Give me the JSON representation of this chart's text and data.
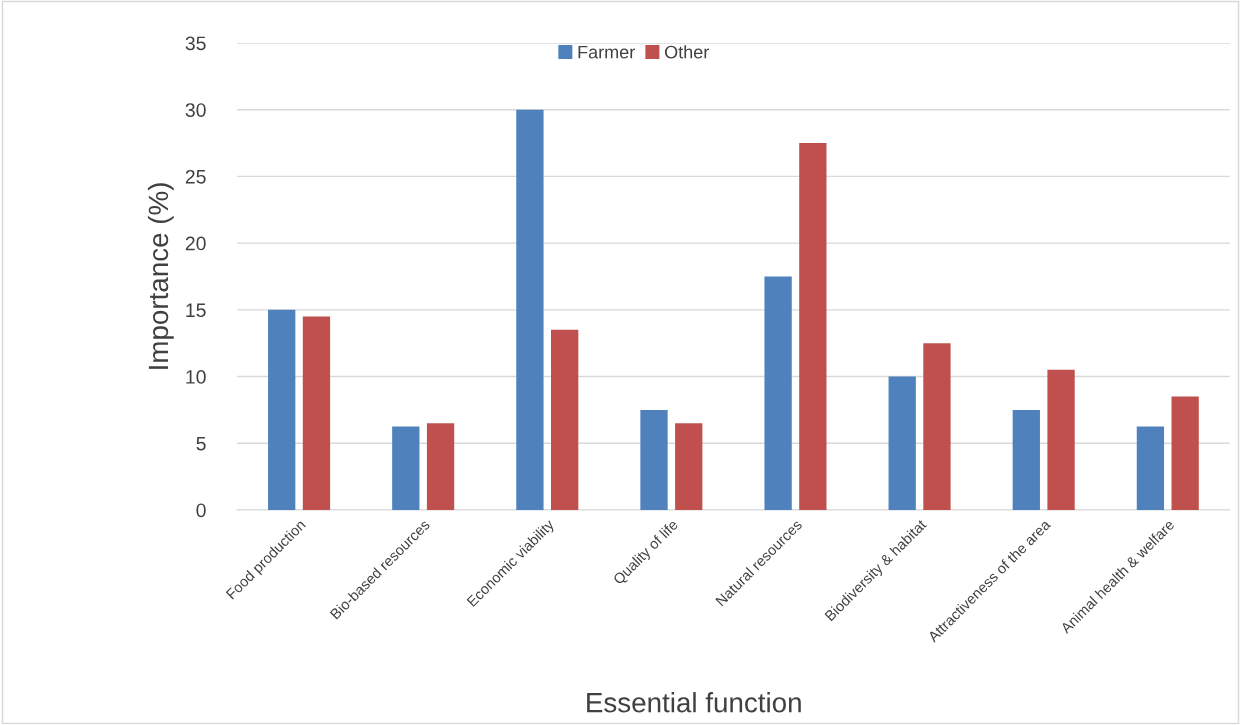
{
  "chart_data": {
    "type": "bar",
    "xlabel": "Essential function",
    "ylabel": "Importance (%)",
    "categories": [
      "Food production",
      "Bio-based resources",
      "Economic viability",
      "Quality of life",
      "Natural resources",
      "Biodiversity & habitat",
      "Attractiveness of the area",
      "Animal health & welfare"
    ],
    "series": [
      {
        "name": "Farmer",
        "color": "#4f81bd",
        "values": [
          15,
          6.25,
          30,
          7.5,
          17.5,
          10,
          7.5,
          6.25
        ]
      },
      {
        "name": "Other",
        "color": "#c0504d",
        "values": [
          14.5,
          6.5,
          13.5,
          6.5,
          27.5,
          12.5,
          10.5,
          8.5
        ]
      }
    ],
    "ylim": [
      0,
      35
    ],
    "yticks": [
      0,
      5,
      10,
      15,
      20,
      25,
      30,
      35
    ],
    "grid": "y",
    "legend": "top"
  }
}
